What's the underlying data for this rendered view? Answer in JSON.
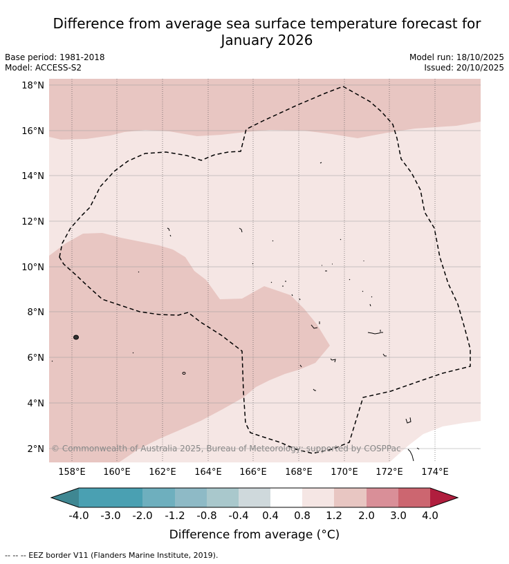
{
  "title_line1": "Difference from average sea surface temperature forecast for",
  "title_line2": "January 2026",
  "info_left": {
    "base_period": "Base period: 1981-2018",
    "model": "Model: ACCESS-S2"
  },
  "info_right": {
    "model_run": "Model run: 18/10/2025",
    "issued": "Issued: 20/10/2025"
  },
  "map": {
    "lon_range": [
      157,
      176
    ],
    "lat_range": [
      1.4,
      18.3
    ],
    "lat_ticks": [
      "18°N",
      "16°N",
      "14°N",
      "12°N",
      "10°N",
      "8°N",
      "6°N",
      "4°N",
      "2°N"
    ],
    "lon_ticks": [
      "158°E",
      "160°E",
      "162°E",
      "164°E",
      "166°E",
      "168°E",
      "170°E",
      "172°E",
      "174°E"
    ],
    "copyright": "© Commonwealth of Australia 2025, Bureau of Meteorology; supported by COSPPac",
    "anomaly_zones": [
      {
        "category": "0.8 to 1.2 °C",
        "color": "#e8c6c2"
      },
      {
        "category": "0.4 to 0.8 °C",
        "color": "#f5e6e4"
      },
      {
        "category": "-0.4 to 0.4 °C",
        "color": "#ffffff"
      }
    ]
  },
  "colorbar": {
    "tick_labels": [
      "-4.0",
      "-3.0",
      "-2.0",
      "-1.2",
      "-0.8",
      "-0.4",
      "0.4",
      "0.8",
      "1.2",
      "2.0",
      "3.0",
      "4.0"
    ],
    "colors": [
      "#3f8792",
      "#4aa0b2",
      "#6eafbe",
      "#8ebac6",
      "#a9c8cc",
      "#cfd9dc",
      "#ffffff",
      "#f5e6e4",
      "#e8c6c2",
      "#d98f98",
      "#cc6670",
      "#c24756",
      "#b01e3e"
    ],
    "label": "Difference from average (°C)",
    "label_text": "Difference from average (",
    "label_unit": "°C)"
  },
  "footnote": "--  --  -- EEZ border V11 (Flanders Marine Institute, 2019)."
}
